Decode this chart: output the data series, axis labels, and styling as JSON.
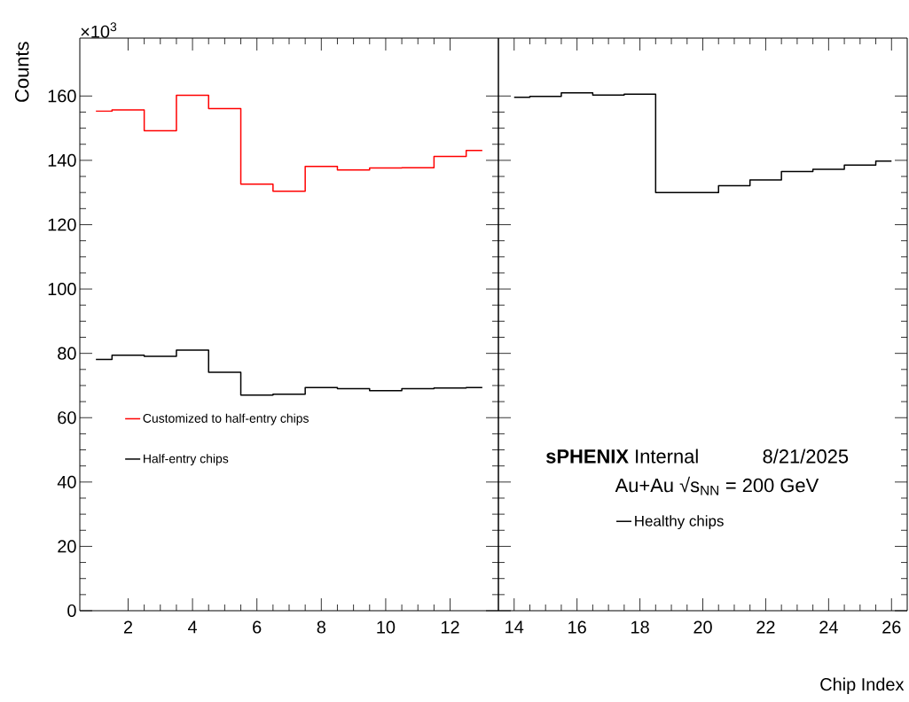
{
  "chart_data": [
    {
      "type": "step",
      "ylabel": "Counts",
      "annotations": [
        "×10$^{3}$"
      ],
      "x": [
        1,
        2,
        3,
        4,
        5,
        6,
        7,
        8,
        9,
        10,
        11,
        12,
        13
      ],
      "series": [
        {
          "name": "Customized to half-entry chips",
          "color": "#ff0000",
          "values": [
            155.3,
            155.7,
            149.2,
            160.2,
            156.1,
            132.6,
            130.4,
            138.1,
            137.0,
            137.6,
            137.7,
            141.2,
            143.1
          ]
        },
        {
          "name": "Half-entry chips",
          "color": "#000000",
          "values": [
            78.1,
            79.4,
            79.1,
            81.0,
            74.1,
            67.0,
            67.3,
            69.4,
            69.0,
            68.4,
            69.0,
            69.2,
            69.4
          ]
        }
      ],
      "xlim": [
        0.5,
        13.5
      ],
      "xticks": [
        2,
        4,
        6,
        8,
        10,
        12
      ],
      "ylim": [
        0,
        178
      ],
      "yticks": [
        0,
        20,
        40,
        60,
        80,
        100,
        120,
        140,
        160
      ],
      "legend": "left",
      "grid": false
    },
    {
      "type": "step",
      "xlabel": "Chip Index",
      "annotations": [
        "**sPHENIX** Internal",
        "8/21/2025",
        "Au+Au √s$_{NN}$ = 200 GeV"
      ],
      "x": [
        14,
        15,
        16,
        17,
        18,
        19,
        20,
        21,
        22,
        23,
        24,
        25,
        26
      ],
      "series": [
        {
          "name": "Healthy chips",
          "color": "#000000",
          "values": [
            159.6,
            159.9,
            161.0,
            160.3,
            160.6,
            130.0,
            130.0,
            132.1,
            133.9,
            136.5,
            137.2,
            138.5,
            139.8
          ]
        }
      ],
      "xlim": [
        13.5,
        26.5
      ],
      "xticks": [
        14,
        16,
        18,
        20,
        22,
        24,
        26
      ],
      "ylim": [
        0,
        178
      ],
      "yticks": [
        0,
        20,
        40,
        60,
        80,
        100,
        120,
        140,
        160
      ],
      "tick_labels": "x",
      "legend": "bottom",
      "grid": false
    }
  ]
}
